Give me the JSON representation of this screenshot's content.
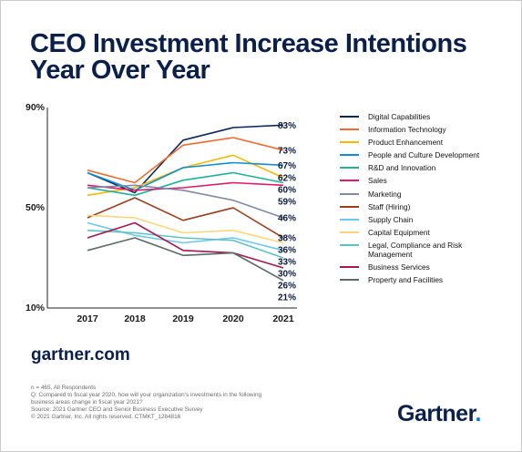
{
  "title_line1": "CEO Investment Increase Intentions",
  "title_line2": "Year Over Year",
  "site": "gartner.com",
  "footnotes": [
    "n = 465, All Respondents",
    "Q: Compared to fiscal year 2020, how will your organization's investments in the following",
    "business areas change in fiscal year 2021?",
    "Source: 2021 Gartner CEO and Senior Business Executive Survey",
    "© 2021 Gartner, Inc. All rights reserved. CTMKT_1284816"
  ],
  "logo": {
    "word": "Gartner",
    "dot": "."
  },
  "chart_data": {
    "type": "line",
    "x": [
      "2017",
      "2018",
      "2019",
      "2020",
      "2021"
    ],
    "ylim": [
      10,
      90
    ],
    "yticks": [
      "10%",
      "50%",
      "90%"
    ],
    "ytick_values": [
      10,
      50,
      90
    ],
    "series": [
      {
        "name": "Digital Capabilities",
        "color": "#0b2a5c",
        "values": [
          64,
          56,
          77,
          82,
          83
        ],
        "label": "83%"
      },
      {
        "name": "Information Technology",
        "color": "#f26a2e",
        "values": [
          65,
          60,
          75,
          78,
          73
        ],
        "label": "73%"
      },
      {
        "name": "Product Enhancement",
        "color": "#f5b800",
        "values": [
          55,
          58,
          66,
          71,
          62
        ],
        "label": "62%"
      },
      {
        "name": "People and Culture Development",
        "color": "#0b8fd6",
        "values": [
          64,
          57,
          66,
          68,
          67
        ],
        "label": "67%"
      },
      {
        "name": "R&D and Innovation",
        "color": "#1cb39a",
        "values": [
          58,
          55,
          61,
          64,
          60
        ],
        "label": "60%"
      },
      {
        "name": "Sales",
        "color": "#e0196f",
        "values": [
          59,
          57,
          58,
          60,
          59
        ],
        "label": "59%"
      },
      {
        "name": "Marketing",
        "color": "#7d8aa8",
        "values": [
          58,
          59,
          57,
          53,
          46
        ],
        "label": "46%"
      },
      {
        "name": "Staff (Hiring)",
        "color": "#9a3f1e",
        "values": [
          46,
          54,
          45,
          50,
          38
        ],
        "label": "38%"
      },
      {
        "name": "Supply Chain",
        "color": "#6cc8ef",
        "values": [
          44,
          39,
          36,
          38,
          33
        ],
        "label": "33%"
      },
      {
        "name": "Capital Equipment",
        "color": "#fbd77a",
        "values": [
          47,
          46,
          40,
          41,
          36
        ],
        "label": "36%"
      },
      {
        "name": "Legal, Compliance and Risk Management",
        "color": "#5ec2c2",
        "values": [
          41,
          40,
          38,
          37,
          30
        ],
        "label": "30%"
      },
      {
        "name": "Business Services",
        "color": "#a5174f",
        "values": [
          38,
          44,
          33,
          32,
          26
        ],
        "label": "26%"
      },
      {
        "name": "Property and Facilities",
        "color": "#5a6a64",
        "values": [
          33,
          38,
          31,
          32,
          21
        ],
        "label": "21%"
      }
    ]
  }
}
